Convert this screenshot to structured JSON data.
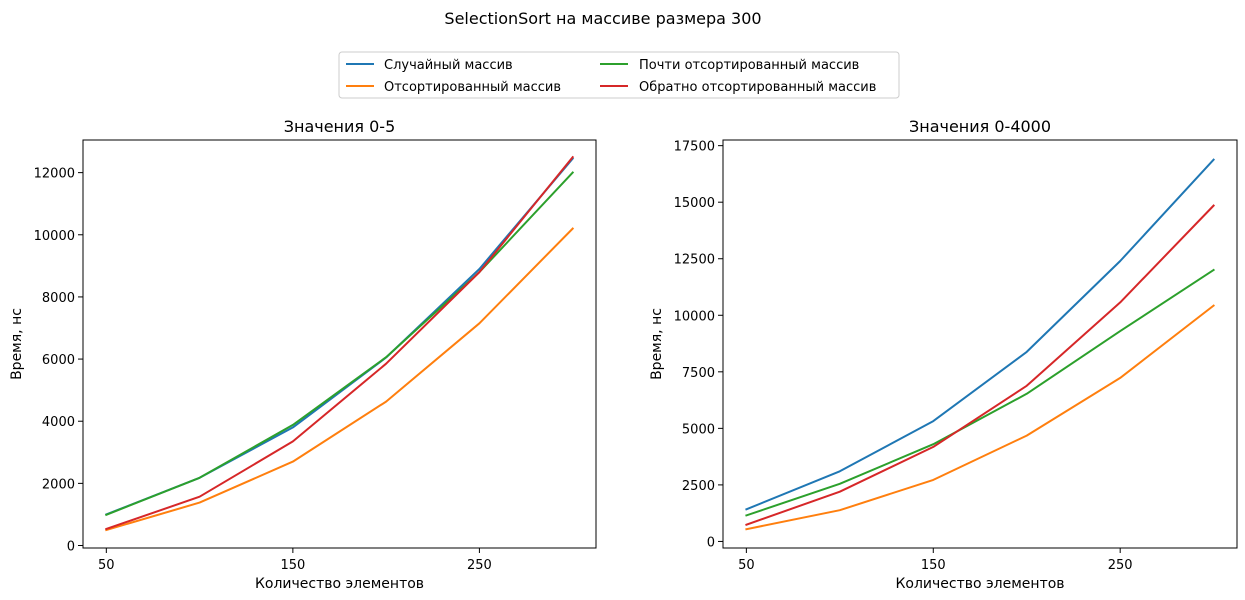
{
  "figure": {
    "title": "SelectionSort на массиве размера 300"
  },
  "legend": {
    "placement": "upper-center",
    "columns": 2,
    "entries": [
      {
        "name": "Случайный массив",
        "color": "#1f77b4"
      },
      {
        "name": "Отсортированный массив",
        "color": "#ff7f0e"
      },
      {
        "name": "Почти отсортированный массив",
        "color": "#2ca02c"
      },
      {
        "name": "Обратно отсортированный массив",
        "color": "#d62728"
      }
    ]
  },
  "chart_data": [
    {
      "type": "line",
      "title": "Значения 0-5",
      "xlabel": "Количество элементов",
      "ylabel": "Время, нс",
      "x": [
        50,
        100,
        150,
        200,
        250,
        300
      ],
      "xticks": [
        50,
        150,
        250
      ],
      "yticks": [
        0,
        2000,
        4000,
        6000,
        8000,
        10000,
        12000
      ],
      "xlim": [
        37.5,
        312.5
      ],
      "ylim": [
        -80,
        13050
      ],
      "grid": false,
      "series": [
        {
          "name": "Случайный массив",
          "color": "#1f77b4",
          "values": [
            1000,
            2180,
            3800,
            6050,
            8900,
            12450
          ]
        },
        {
          "name": "Отсортированный массив",
          "color": "#ff7f0e",
          "values": [
            500,
            1380,
            2700,
            4630,
            7150,
            10200
          ]
        },
        {
          "name": "Почти отсортированный массив",
          "color": "#2ca02c",
          "values": [
            990,
            2180,
            3880,
            6060,
            8800,
            12000
          ]
        },
        {
          "name": "Обратно отсортированный массив",
          "color": "#d62728",
          "values": [
            530,
            1570,
            3350,
            5850,
            8800,
            12500
          ]
        }
      ]
    },
    {
      "type": "line",
      "title": "Значения 0-4000",
      "xlabel": "Количество элементов",
      "ylabel": "Время, нс",
      "x": [
        50,
        100,
        150,
        200,
        250,
        300
      ],
      "xticks": [
        50,
        150,
        250
      ],
      "yticks": [
        0,
        2500,
        5000,
        7500,
        10000,
        12500,
        15000,
        17500
      ],
      "xlim": [
        37.5,
        312.5
      ],
      "ylim": [
        -290,
        17750
      ],
      "grid": false,
      "series": [
        {
          "name": "Случайный массив",
          "color": "#1f77b4",
          "values": [
            1420,
            3100,
            5320,
            8380,
            12400,
            16880
          ]
        },
        {
          "name": "Отсортированный массив",
          "color": "#ff7f0e",
          "values": [
            540,
            1380,
            2720,
            4680,
            7230,
            10430
          ]
        },
        {
          "name": "Почти отсортированный массив",
          "color": "#2ca02c",
          "values": [
            1150,
            2550,
            4300,
            6530,
            9300,
            12000
          ]
        },
        {
          "name": "Обратно отсортированный массив",
          "color": "#d62728",
          "values": [
            740,
            2200,
            4180,
            6880,
            10570,
            14850
          ]
        }
      ]
    }
  ]
}
